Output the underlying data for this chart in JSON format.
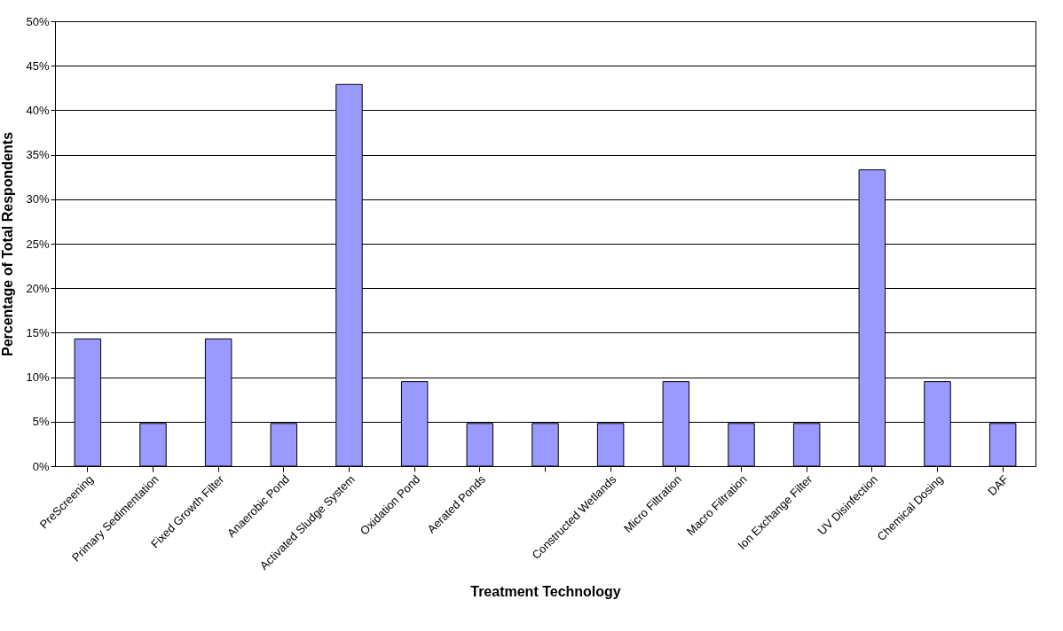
{
  "chart_data": {
    "type": "bar",
    "xlabel": "Treatment Technology",
    "ylabel": "Percentage of Total Respondents",
    "categories": [
      "PreScreening",
      "Primary Sedimentation",
      "Fixed Growth Filter",
      "Anaerobic Pond",
      "Activated Sludge System",
      "Oxidation Pond",
      "Aerated Ponds",
      null,
      "Constructed Wetlands",
      "Micro Filtration",
      "Macro Filtration",
      "Ion Exchange Filter",
      "UV Disinfection",
      "Chemical Dosing",
      "DAF"
    ],
    "values": [
      14.3,
      4.8,
      14.3,
      4.8,
      42.9,
      9.5,
      4.8,
      4.8,
      4.8,
      9.5,
      4.8,
      4.8,
      33.3,
      9.5,
      4.8
    ],
    "color": "#9999ff",
    "ylim": [
      0,
      50
    ],
    "yticks": [
      {
        "value": 0,
        "label": "0%"
      },
      {
        "value": 5,
        "label": "5%"
      },
      {
        "value": 10,
        "label": "10%"
      },
      {
        "value": 15,
        "label": "15%"
      },
      {
        "value": 20,
        "label": "20%"
      },
      {
        "value": 25,
        "label": "25%"
      },
      {
        "value": 30,
        "label": "30%"
      },
      {
        "value": 35,
        "label": "35%"
      },
      {
        "value": 40,
        "label": "40%"
      },
      {
        "value": 45,
        "label": "45%"
      },
      {
        "value": 50,
        "label": "50%"
      }
    ],
    "grid": "y"
  }
}
